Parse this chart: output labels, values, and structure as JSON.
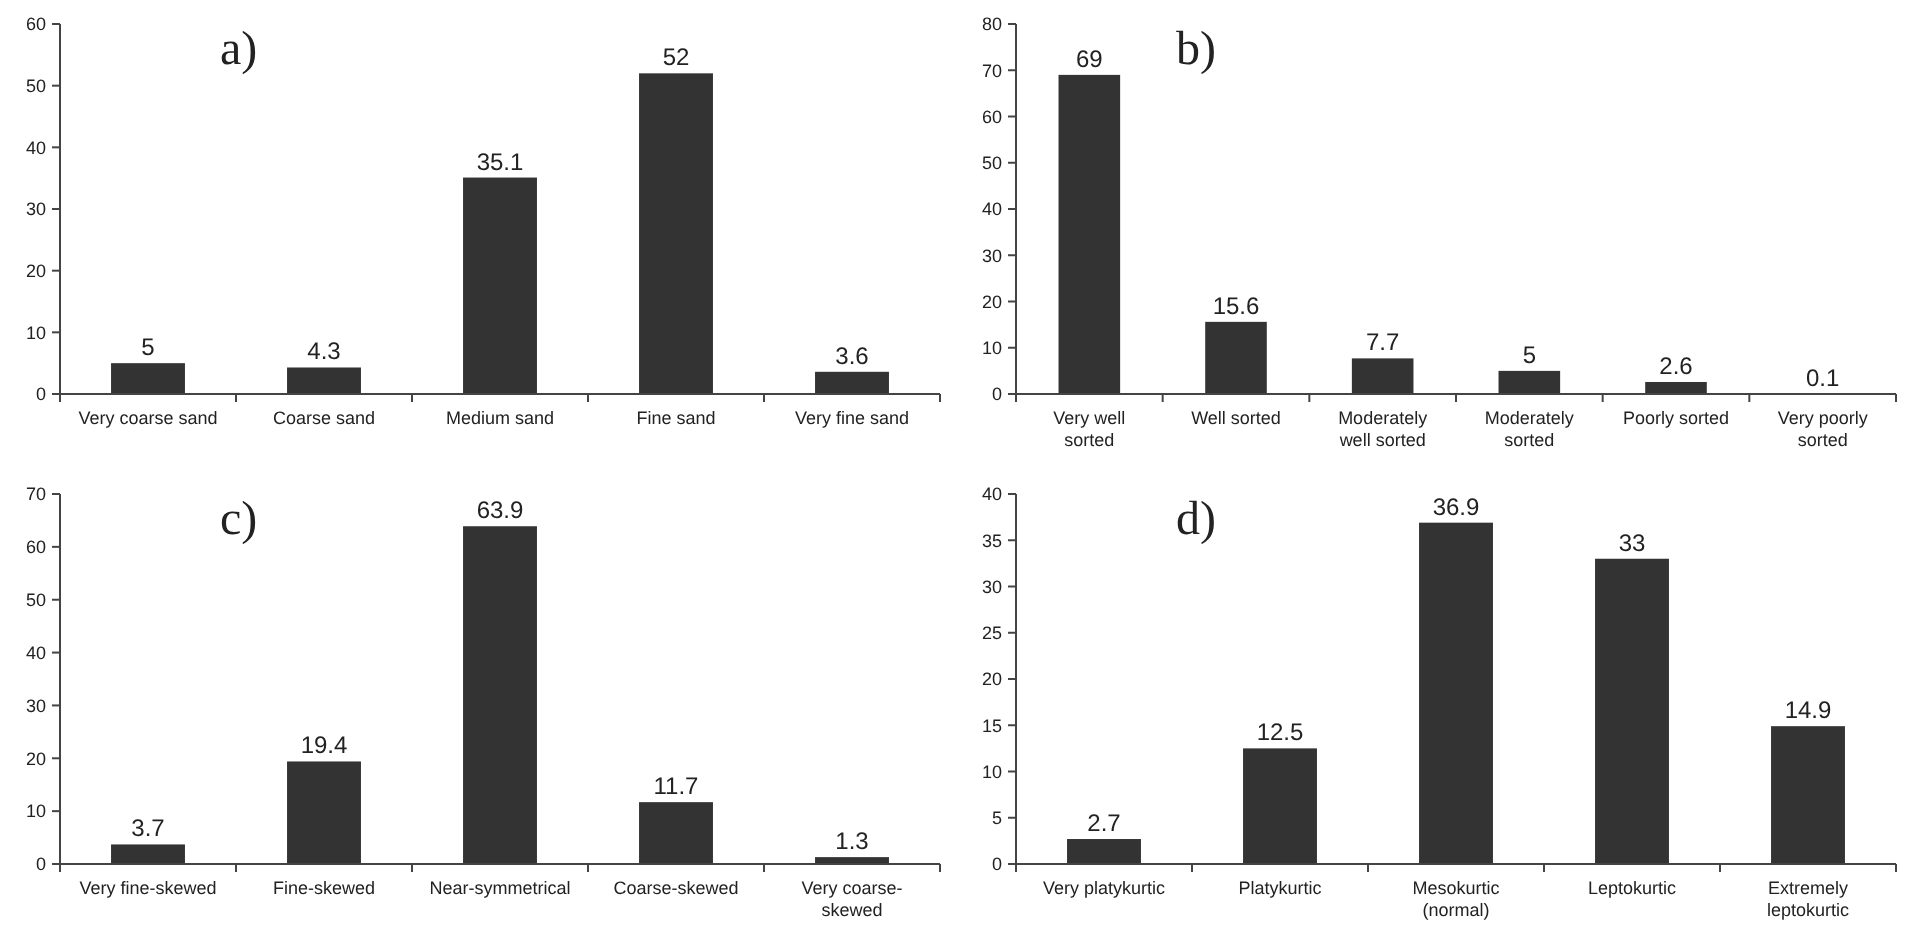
{
  "chart_data": [
    {
      "type": "bar",
      "title": "a)",
      "categories": [
        "Very coarse sand",
        "Coarse sand",
        "Medium sand",
        "Fine sand",
        "Very fine sand"
      ],
      "values": [
        5,
        4.3,
        35.1,
        52,
        3.6
      ],
      "color": "#333333",
      "ylim": [
        0,
        60
      ],
      "yticks": [
        0,
        10,
        20,
        30,
        40,
        50,
        60
      ],
      "data_labels": true,
      "grid": false
    },
    {
      "type": "bar",
      "title": "b)",
      "categories": [
        "Very well sorted",
        "Well sorted",
        "Moderately well sorted",
        "Moderately sorted",
        "Poorly sorted",
        "Very poorly sorted"
      ],
      "values": [
        69,
        15.6,
        7.7,
        5,
        2.6,
        0.1
      ],
      "color": "#333333",
      "ylim": [
        0,
        80
      ],
      "yticks": [
        0,
        10,
        20,
        30,
        40,
        50,
        60,
        70,
        80
      ],
      "data_labels": true,
      "grid": false
    },
    {
      "type": "bar",
      "title": "c)",
      "categories": [
        "Very fine-skewed",
        "Fine-skewed",
        "Near-symmetrical",
        "Coarse-skewed",
        "Very coarse-skewed"
      ],
      "values": [
        3.7,
        19.4,
        63.9,
        11.7,
        1.3
      ],
      "color": "#333333",
      "ylim": [
        0,
        70
      ],
      "yticks": [
        0,
        10,
        20,
        30,
        40,
        50,
        60,
        70
      ],
      "data_labels": true,
      "grid": false
    },
    {
      "type": "bar",
      "title": "d)",
      "categories": [
        "Very platykurtic",
        "Platykurtic",
        "Mesokurtic (normal)",
        "Leptokurtic",
        "Extremely leptokurtic"
      ],
      "values": [
        2.7,
        12.5,
        36.9,
        33,
        14.9
      ],
      "color": "#333333",
      "ylim": [
        0,
        40
      ],
      "yticks": [
        0,
        5,
        10,
        15,
        20,
        25,
        30,
        35,
        40
      ],
      "data_labels": true,
      "grid": false
    }
  ]
}
